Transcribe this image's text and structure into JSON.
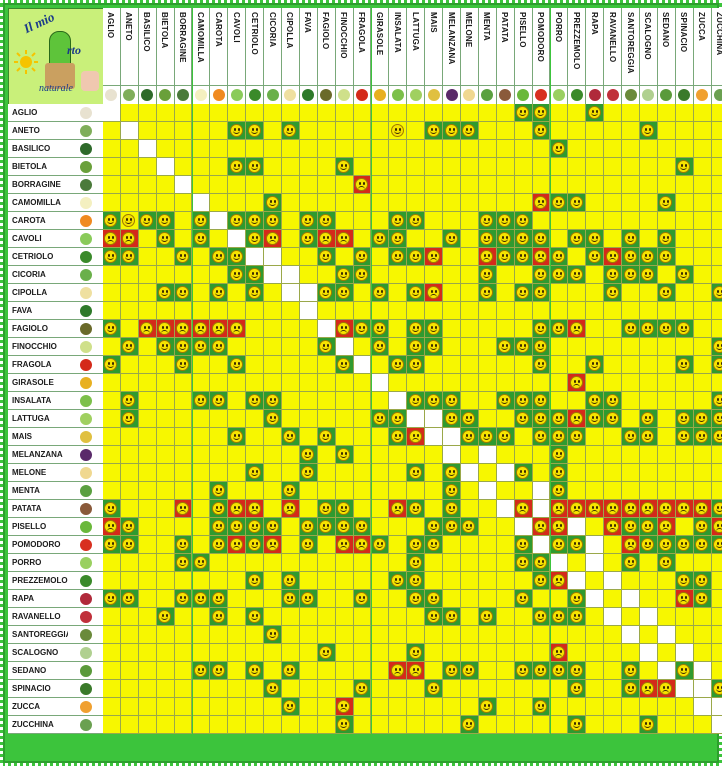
{
  "logo": {
    "line1": "Il mio",
    "line2": "rto",
    "line3": "naturale"
  },
  "plants": [
    "Aglio",
    "Aneto",
    "Basilico",
    "Bietola",
    "Borragine",
    "Camomilla",
    "Carota",
    "Cavoli",
    "Cetriolo",
    "Cicoria",
    "Cipolla",
    "Fava",
    "Fagiolo",
    "Finocchio",
    "Fragola",
    "Girasole",
    "Insalata",
    "Lattuga",
    "Mais",
    "Melanzana",
    "Melone",
    "Menta",
    "Patata",
    "Pisello",
    "Pomodoro",
    "Porro",
    "Prezzemolo",
    "Rapa",
    "Ravanello",
    "Santoreggia",
    "Scalogno",
    "Sedano",
    "Spinacio",
    "Zucca",
    "Zucchina"
  ],
  "plant_icon_colors": [
    "#e8e2d0",
    "#7fae5a",
    "#2e6a2a",
    "#6aa03a",
    "#4a7a3a",
    "#f4f0c0",
    "#f08a20",
    "#8acb5a",
    "#3a8a2a",
    "#6ab04a",
    "#efe0a0",
    "#2e7a2a",
    "#6a6a2a",
    "#cfe08a",
    "#d42a1a",
    "#e8b020",
    "#7cc04a",
    "#a0d060",
    "#e0c040",
    "#5a2a6a",
    "#f0d890",
    "#5aa040",
    "#8a5a3a",
    "#6ab83a",
    "#d83020",
    "#9ad060",
    "#3a8a2a",
    "#b02a3a",
    "#c0303a",
    "#6a8a3a",
    "#b0d090",
    "#5a9a3a",
    "#3a7a2a",
    "#f0a030",
    "#6aa050"
  ],
  "legend": {
    "good": "#2f9a2f",
    "bad": "#d42a1a",
    "neutral": "#f7f700",
    "self": "#ffffff"
  },
  "matrix": [
    "-......................GG..G.......",
    ".-.....GG.G.....Y.GGG...G.....G....",
    "..-......................G.........",
    "...-...GG....G..................G..",
    "....-.........R....................",
    ".....-...G..............RGG....G...",
    "GYGG.G-GGG.GG...GG...GGG...........",
    "RR.G.G.-GR.GRR.GG..G.GGGG.GG.G.G...",
    "GG..G.GGG-..G.G.GGR..RGGRG.GRGGG...",
    ".......GG.-..GG......G..GGG.GGG.G..",
    "...GG.G.G.G-GG.G.GR..G.GG...G..G..G",
    "...................................",
    "G.RRRRRR.....RGG.GG.....GGR..GGGG..",
    ".G.GGGG.....GR.G.GG...GGG.........G",
    "G...G..G.....G..GG......G..G....G.G",
    "...............-..........R........",
    ".G...GG.GG......-GGG..GGG..GG.....G",
    ".G.......G.....GG.-GG..GGGRGG.G.GGG",
    ".......G..G.G...GR.-GGG.GGG..GG.GGG",
    "...........G.G.......-...G.........",
    "........G..G.....G.G..-G.G.........",
    "......G...G........G.G..-G.........",
    "G...R.GRR.R.GG..RG.G..GR-RRRRRRRRRG",
    "RG....GGGG.GGGG...GGG..GRR-.RGGR.GR",
    "GG..G.GRGR.G.RRG.GG....G.GG-.RGGGGG",
    "....GG...........G.....GGG.-.G.G...",
    "........G.G.....GG......GR..-...GG.",
    "GG..GGG...GG..G..GG....G..GG.-..RG.",
    "...G..G.G.........GG.G..GGG.G.-....",
    ".........G...................G.-...",
    "............G....G.......R......-..",
    ".....GG.G.G.....RR.GG..GGGG..G..G-.",
    ".........G....G...G.......G..GRR.-G",
    "..........G..R.......G..G.........-",
    ".............G......G.....G...G...."
  ]
}
